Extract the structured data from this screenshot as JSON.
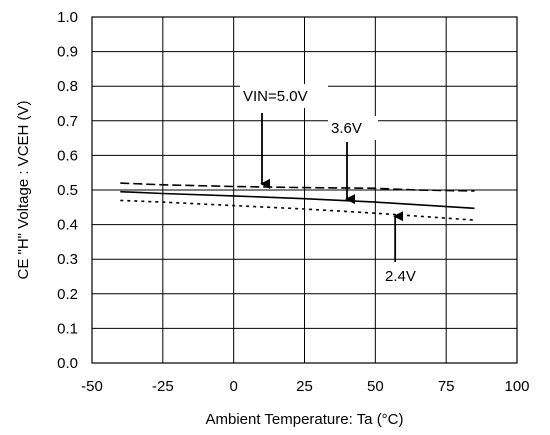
{
  "chart_data": {
    "type": "line",
    "xlabel": "Ambient Temperature: Ta (°C)",
    "ylabel": "CE \"H\" Voltage : VCEH (V)",
    "xlim": [
      -50,
      100
    ],
    "ylim": [
      0.0,
      1.0
    ],
    "x_ticks": [
      "-50",
      "-25",
      "0",
      "25",
      "50",
      "75",
      "100"
    ],
    "y_ticks": [
      "0.0",
      "0.1",
      "0.2",
      "0.3",
      "0.4",
      "0.5",
      "0.6",
      "0.7",
      "0.8",
      "0.9",
      "1.0"
    ],
    "grid": true,
    "series": [
      {
        "name": "VIN=5.0V",
        "style": "dashed",
        "x": [
          -40,
          -25,
          0,
          25,
          50,
          65,
          85
        ],
        "y": [
          0.52,
          0.515,
          0.51,
          0.507,
          0.505,
          0.5,
          0.497
        ]
      },
      {
        "name": "3.6V",
        "style": "solid",
        "x": [
          -40,
          -25,
          0,
          25,
          50,
          85
        ],
        "y": [
          0.495,
          0.49,
          0.483,
          0.475,
          0.465,
          0.447
        ]
      },
      {
        "name": "2.4V",
        "style": "dotted",
        "x": [
          -40,
          -25,
          0,
          25,
          50,
          85
        ],
        "y": [
          0.47,
          0.465,
          0.455,
          0.445,
          0.433,
          0.413
        ]
      }
    ],
    "annotations": [
      {
        "text": "VIN=5.0V",
        "arrow_to": [
          10,
          0.512
        ]
      },
      {
        "text": "3.6V",
        "arrow_to": [
          40,
          0.468
        ]
      },
      {
        "text": "2.4V",
        "arrow_to": [
          57,
          0.43
        ]
      }
    ]
  }
}
